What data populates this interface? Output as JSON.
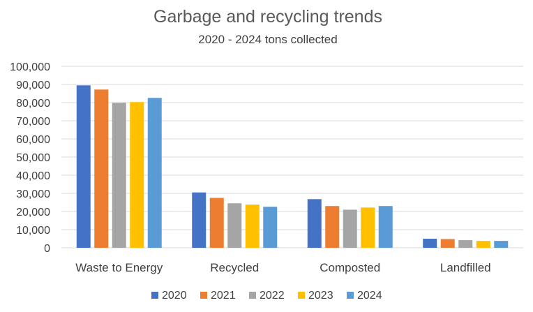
{
  "chart_data": {
    "type": "bar",
    "title": "Garbage and recycling trends",
    "subtitle": "2020 - 2024 tons collected",
    "categories": [
      "Waste to Energy",
      "Recycled",
      "Composted",
      "Landfilled"
    ],
    "series": [
      {
        "name": "2020",
        "color": "#4472C4",
        "values": [
          89500,
          30500,
          26800,
          5000
        ]
      },
      {
        "name": "2021",
        "color": "#ED7D31",
        "values": [
          87200,
          27500,
          23000,
          4800
        ]
      },
      {
        "name": "2022",
        "color": "#A5A5A5",
        "values": [
          79900,
          24500,
          21000,
          4200
        ]
      },
      {
        "name": "2023",
        "color": "#FFC000",
        "values": [
          80300,
          23800,
          22200,
          3800
        ]
      },
      {
        "name": "2024",
        "color": "#5B9BD5",
        "values": [
          82600,
          22600,
          23000,
          3800
        ]
      }
    ],
    "ylim": [
      0,
      100000
    ],
    "yticks": [
      0,
      10000,
      20000,
      30000,
      40000,
      50000,
      60000,
      70000,
      80000,
      90000,
      100000
    ],
    "ytick_labels": [
      "0",
      "10,000",
      "20,000",
      "30,000",
      "40,000",
      "50,000",
      "60,000",
      "70,000",
      "80,000",
      "90,000",
      "100,000"
    ],
    "grid": true,
    "legend": "bottom"
  }
}
